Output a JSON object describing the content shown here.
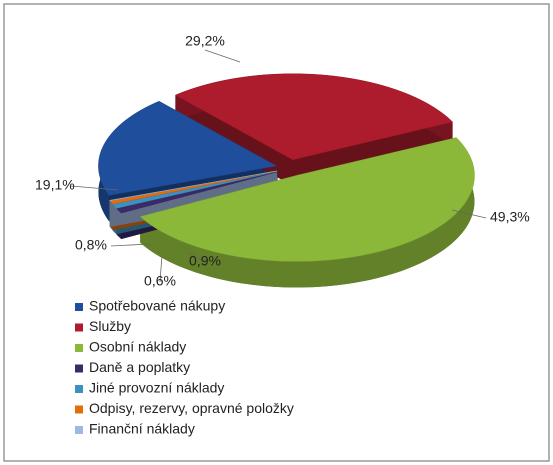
{
  "chart_data": {
    "type": "pie3d",
    "categories": [
      "Spotřebované nákupy",
      "Služby",
      "Osobní náklady",
      "Daně a poplatky",
      "Jiné provozní náklady",
      "Odpisy, rezervy, opravné  položky",
      "Finanční náklady"
    ],
    "values": [
      19.1,
      29.2,
      49.3,
      0.9,
      0.8,
      0.6,
      0.1
    ],
    "value_labels": [
      "19,1%",
      "29,2%",
      "49,3%",
      "0,9%",
      "0,8%",
      "0,6%",
      null
    ],
    "colors": [
      "#1f4f9c",
      "#ac1c2c",
      "#8cb83a",
      "#3a2a6a",
      "#3d91c0",
      "#e46c0a",
      "#9fb7e0"
    ],
    "legend": "bottom-left"
  }
}
